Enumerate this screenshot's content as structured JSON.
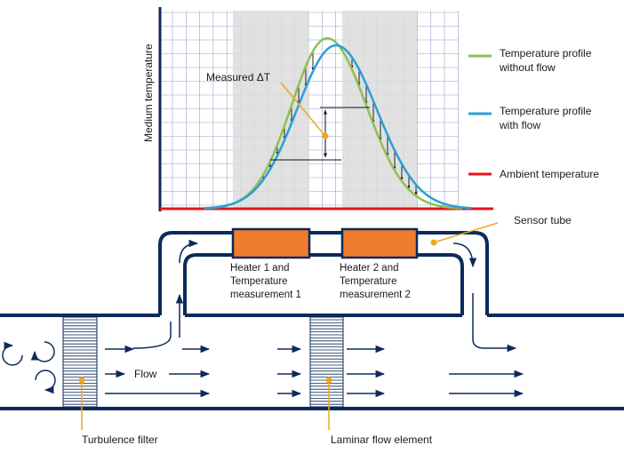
{
  "chart": {
    "ylabel": "Medium temperature",
    "annotation": "Measured ΔT"
  },
  "legend": {
    "items": [
      {
        "line1": "Temperature profile",
        "line2": "without flow",
        "color": "#8cc152"
      },
      {
        "line1": "Temperature profile",
        "line2": "with flow",
        "color": "#2a9fd6"
      },
      {
        "line1": "Ambient temperature",
        "line2": "",
        "color": "#e4141b"
      }
    ]
  },
  "labels": {
    "heater1": [
      "Heater 1 and",
      "Temperature",
      "measurement 1"
    ],
    "heater2": [
      "Heater 2 and",
      "Temperature",
      "measurement 2"
    ],
    "sensor_tube": "Sensor tube",
    "flow": "Flow",
    "turbulence_filter": "Turbulence filter",
    "laminar_flow_element": "Laminar flow element"
  },
  "colors": {
    "pipe": "#0c2a5b",
    "heater": "#f07c2e",
    "callout": "#f0a61e",
    "grid": "#9aa2c8",
    "shade": "#dcdcdc"
  }
}
